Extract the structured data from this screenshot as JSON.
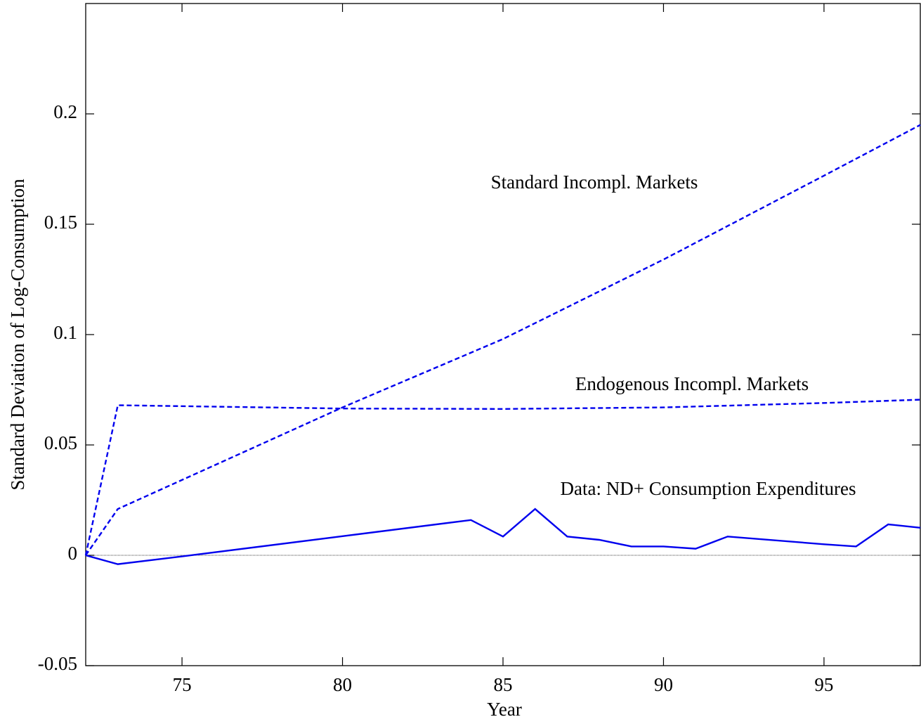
{
  "chart_data": {
    "type": "line",
    "xlabel": "Year",
    "ylabel": "Standard Deviation of Log-Consumption",
    "xlim": [
      72,
      98
    ],
    "ylim": [
      -0.05,
      0.25
    ],
    "xticks": [
      75,
      80,
      85,
      90,
      95
    ],
    "yticks": [
      -0.05,
      0,
      0.05,
      0.1,
      0.15,
      0.2
    ],
    "reference_line": 0,
    "series": [
      {
        "name": "Standard Incompl. Markets",
        "color": "#0000ee",
        "style": "dashed",
        "x": [
          72,
          73,
          80,
          85,
          90,
          95,
          98
        ],
        "values": [
          0,
          0.021,
          0.067,
          0.098,
          0.134,
          0.172,
          0.195
        ]
      },
      {
        "name": "Endogenous Incompl. Markets",
        "color": "#0000ee",
        "style": "dashed",
        "x": [
          72,
          73,
          80,
          85,
          90,
          95,
          98
        ],
        "values": [
          0,
          0.068,
          0.0665,
          0.0663,
          0.067,
          0.069,
          0.0705
        ]
      },
      {
        "name": "Data: ND+ Consumption Expenditures",
        "color": "#0000ee",
        "style": "solid",
        "x": [
          72,
          73,
          75,
          84,
          85,
          86,
          87,
          88,
          89,
          90,
          91,
          92,
          95,
          96,
          97,
          98
        ],
        "values": [
          0,
          -0.004,
          -0.0005,
          0.016,
          0.0085,
          0.021,
          0.0085,
          0.007,
          0.004,
          0.004,
          0.003,
          0.0085,
          0.005,
          0.004,
          0.014,
          0.0125
        ]
      }
    ]
  }
}
